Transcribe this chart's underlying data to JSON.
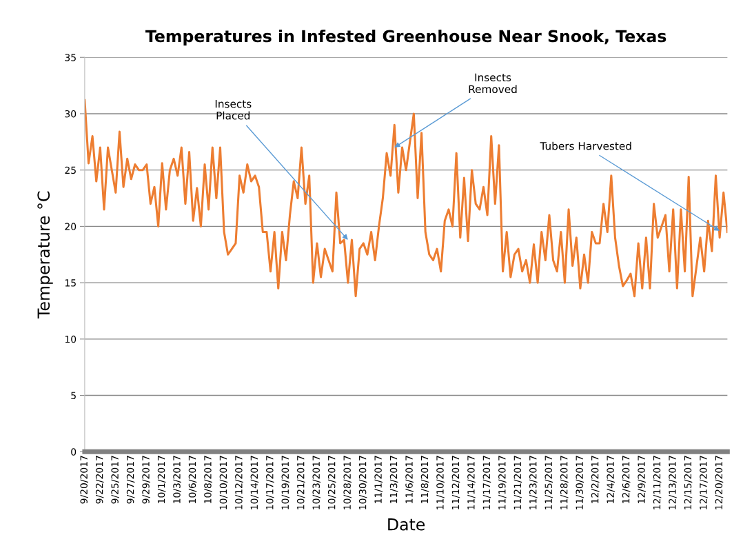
{
  "chart_data": {
    "type": "line",
    "title": "Temperatures in Infested Greenhouse Near Snook, Texas",
    "xlabel": "Date",
    "ylabel": "Temperature °C",
    "categories": [
      "9/20/2017",
      null,
      null,
      null,
      "9/22/2017",
      null,
      null,
      null,
      "9/25/2017",
      null,
      null,
      null,
      "9/27/2017",
      null,
      null,
      null,
      "9/29/2017",
      null,
      null,
      null,
      "10/1/2017",
      null,
      null,
      null,
      "10/3/2017",
      null,
      null,
      null,
      "10/6/2017",
      null,
      null,
      null,
      "10/8/2017",
      null,
      null,
      null,
      "10/10/2017",
      null,
      null,
      null,
      "10/12/2017",
      null,
      null,
      null,
      "10/14/2017",
      null,
      null,
      null,
      "10/17/2017",
      null,
      null,
      null,
      "10/19/2017",
      null,
      null,
      null,
      "10/21/2017",
      null,
      null,
      null,
      "10/23/2017",
      null,
      null,
      null,
      "10/25/2017",
      null,
      null,
      null,
      "10/28/2017",
      null,
      null,
      null,
      "10/30/2017",
      null,
      null,
      null,
      "11/1/2017",
      null,
      null,
      null,
      "11/3/2017",
      null,
      null,
      null,
      "11/6/2017",
      null,
      null,
      null,
      "11/8/2017",
      null,
      null,
      null,
      "11/10/2017",
      null,
      null,
      null,
      "11/12/2017",
      null,
      null,
      null,
      "11/14/2017",
      null,
      null,
      null,
      "11/17/2017",
      null,
      null,
      null,
      "11/19/2017",
      null,
      null,
      null,
      "11/21/2017",
      null,
      null,
      null,
      "11/23/2017",
      null,
      null,
      null,
      "11/25/2017",
      null,
      null,
      null,
      "11/28/2017",
      null,
      null,
      null,
      "11/30/2017",
      null,
      null,
      null,
      "12/2/2017",
      null,
      null,
      null,
      "12/4/2017",
      null,
      null,
      null,
      "12/6/2017",
      null,
      null,
      null,
      "12/9/2017",
      null,
      null,
      null,
      "12/11/2017",
      null,
      null,
      null,
      "12/13/2017",
      null,
      null,
      null,
      "12/15/2017",
      null,
      null,
      null,
      "12/17/2017",
      null,
      null,
      null,
      "12/20/2017",
      null,
      null
    ],
    "series": [
      {
        "color": "#ed7d31",
        "values": [
          31.2,
          25.6,
          28,
          24,
          27,
          21.5,
          27,
          25,
          23,
          28.4,
          23.5,
          26,
          24.2,
          25.5,
          25,
          25,
          25.5,
          22,
          23.5,
          20,
          25.6,
          21.5,
          25,
          26,
          24.5,
          27,
          22,
          26.6,
          20.5,
          23.4,
          20,
          25.5,
          21.5,
          27,
          22.5,
          27,
          19.5,
          17.5,
          18,
          18.5,
          24.5,
          23,
          25.5,
          24,
          24.5,
          23.5,
          19.5,
          19.5,
          16,
          19.5,
          14.5,
          19.5,
          17,
          21,
          24,
          22.5,
          27,
          22,
          24.5,
          15,
          18.5,
          15.5,
          18,
          17,
          16,
          23,
          18.5,
          18.8,
          15,
          18.8,
          13.8,
          18,
          18.5,
          17.5,
          19.5,
          17,
          20,
          22.5,
          26.5,
          24.5,
          29,
          23,
          27,
          25,
          27.5,
          30,
          22.5,
          28.3,
          19.5,
          17.5,
          17,
          18,
          16,
          20.5,
          21.5,
          20,
          26.5,
          19,
          24.3,
          18.7,
          25,
          22,
          21.5,
          23.5,
          21,
          28,
          22,
          27.2,
          16,
          19.5,
          15.5,
          17.5,
          18,
          16,
          17,
          15,
          18.4,
          15,
          19.5,
          17,
          21,
          17,
          16,
          19.5,
          15,
          21.5,
          16.5,
          19,
          14.5,
          17.5,
          15,
          19.5,
          18.5,
          18.5,
          22,
          19.5,
          24.5,
          19,
          16.5,
          14.7,
          15.2,
          15.8,
          13.8,
          18.5,
          14.5,
          19,
          14.5,
          22,
          19,
          20,
          21,
          16,
          21.5,
          14.5,
          21.5,
          16,
          24.4,
          13.8,
          16.4,
          19,
          16,
          20.5,
          17.8,
          24.5,
          19,
          23,
          19.5
        ]
      }
    ],
    "ylim": [
      0,
      35
    ],
    "yticks": [
      0,
      5,
      10,
      15,
      20,
      25,
      30,
      35
    ],
    "grid": "y",
    "marker": "none",
    "line_style": "solid",
    "annotations": [
      {
        "text": "Insects\nPlaced",
        "x": "10/28/2017",
        "y": 18.8
      },
      {
        "text": "Insects\nRemoved",
        "x": "11/3/2017",
        "y": 27
      },
      {
        "text": "Tubers Harvested",
        "x": "12/20/2017",
        "y": 19.6
      }
    ]
  }
}
